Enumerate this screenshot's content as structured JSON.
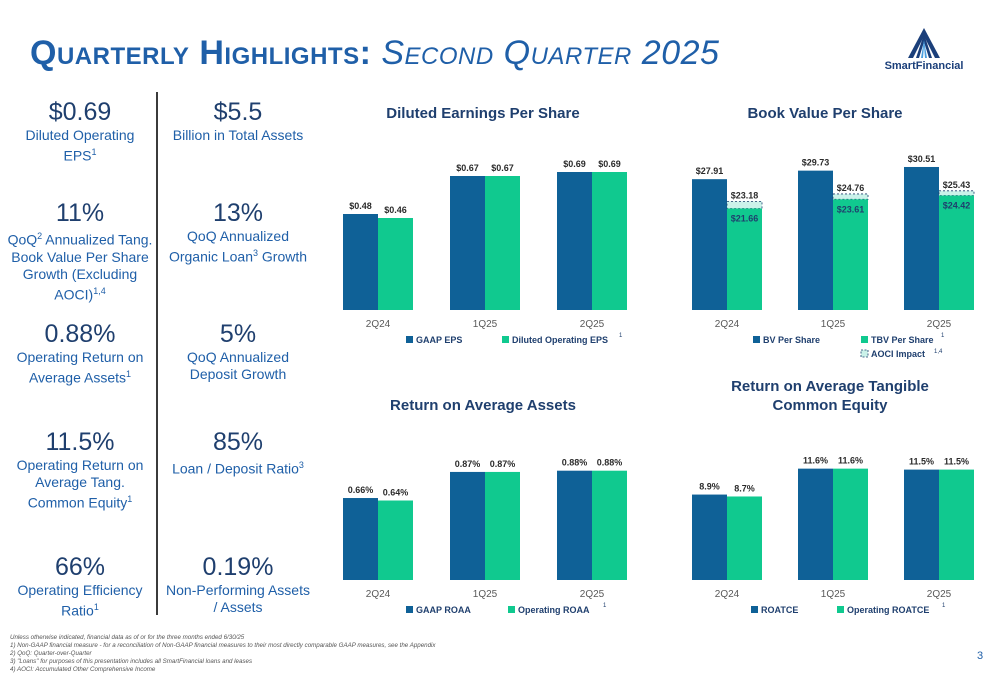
{
  "title": {
    "main": "Quarterly Highlights:",
    "sub": "Second Quarter 2025"
  },
  "logo": {
    "text": "SmartFinancial"
  },
  "colors": {
    "dark": "#0f6197",
    "light": "#10c98f",
    "aoci": "#cbf2ea"
  },
  "stats_left": [
    {
      "big": "$0.69",
      "small": "Diluted Operating",
      "small2": "EPS",
      "sup": "1"
    },
    {
      "big": "11%",
      "small": "QoQ",
      "sup_a": "2",
      "small2": " Annualized Tang. Book Value Per Share Growth (Excluding AOCI)",
      "sup": "1,4"
    },
    {
      "big": "0.88%",
      "small": "Operating Return on Average Assets",
      "sup": "1"
    },
    {
      "big": "11.5%",
      "small": "Operating Return on Average Tang. Common Equity",
      "sup": "1"
    },
    {
      "big": "66%",
      "small": "Operating Efficiency Ratio",
      "sup": "1"
    }
  ],
  "stats_right": [
    {
      "big": "$5.5",
      "small": "Billion in Total Assets"
    },
    {
      "big": "13%",
      "small": "QoQ Annualized Organic Loan",
      "sup": "3",
      "small2": " Growth"
    },
    {
      "big": "5%",
      "small": "QoQ Annualized Deposit Growth"
    },
    {
      "big": "85%",
      "small": "Loan / Deposit Ratio",
      "sup": "3"
    },
    {
      "big": "0.19%",
      "small": "Non-Performing Assets / Assets"
    }
  ],
  "chart_data": [
    {
      "id": "eps",
      "type": "bar",
      "title": "Diluted Earnings Per Share",
      "categories": [
        "2Q24",
        "1Q25",
        "2Q25"
      ],
      "ylim": [
        0,
        0.75
      ],
      "series": [
        {
          "name": "GAAP EPS",
          "values": [
            0.48,
            0.67,
            0.69
          ],
          "labels": [
            "$0.48",
            "$0.67",
            "$0.69"
          ]
        },
        {
          "name": "Diluted Operating EPS",
          "values": [
            0.46,
            0.67,
            0.69
          ],
          "labels": [
            "$0.46",
            "$0.67",
            "$0.69"
          ],
          "sup": "1"
        }
      ]
    },
    {
      "id": "bv",
      "type": "bar",
      "title": "Book Value Per Share",
      "categories": [
        "2Q24",
        "1Q25",
        "2Q25"
      ],
      "ylim": [
        0,
        32
      ],
      "series": [
        {
          "name": "BV Per Share",
          "values": [
            27.91,
            29.73,
            30.51
          ],
          "labels": [
            "$27.91",
            "$29.73",
            "$30.51"
          ]
        },
        {
          "name": "TBV Per Share",
          "values": [
            21.66,
            23.61,
            24.42
          ],
          "labels": [
            "$21.66",
            "$23.61",
            "$24.42"
          ],
          "sup": "1"
        },
        {
          "name": "AOCI Impact",
          "values": [
            23.18,
            24.76,
            25.43
          ],
          "labels": [
            "$23.18",
            "$24.76",
            "$25.43"
          ],
          "sup": "1,4"
        }
      ]
    },
    {
      "id": "roaa",
      "type": "bar",
      "title": "Return on Average Assets",
      "categories": [
        "2Q24",
        "1Q25",
        "2Q25"
      ],
      "ylim": [
        0,
        0.95
      ],
      "series": [
        {
          "name": "GAAP ROAA",
          "values": [
            0.66,
            0.87,
            0.88
          ],
          "labels": [
            "0.66%",
            "0.87%",
            "0.88%"
          ]
        },
        {
          "name": "Operating ROAA",
          "values": [
            0.64,
            0.87,
            0.88
          ],
          "labels": [
            "0.64%",
            "0.87%",
            "0.88%"
          ],
          "sup": "1"
        }
      ]
    },
    {
      "id": "roatce",
      "type": "bar",
      "title": "Return on Average Tangible Common Equity",
      "categories": [
        "2Q24",
        "1Q25",
        "2Q25"
      ],
      "ylim": [
        0,
        12.5
      ],
      "series": [
        {
          "name": "ROATCE",
          "values": [
            8.9,
            11.6,
            11.5
          ],
          "labels": [
            "8.9%",
            "11.6%",
            "11.5%"
          ]
        },
        {
          "name": "Operating ROATCE",
          "values": [
            8.7,
            11.6,
            11.5
          ],
          "labels": [
            "8.7%",
            "11.6%",
            "11.5%"
          ],
          "sup": "1"
        }
      ]
    }
  ],
  "footnotes": [
    "Unless otherwise indicated, financial data as of or for the three months ended 6/30/25",
    "1)    Non-GAAP financial measure - for a reconciliation of Non-GAAP financial measures to their most directly comparable GAAP measures, see the Appendix",
    "2)    QoQ: Quarter-over-Quarter",
    "3)    \"Loans\" for purposes of this presentation includes all SmartFinancial loans and leases",
    "4)    AOCI: Accumulated Other Comprehensive Income"
  ],
  "page_number": "3"
}
